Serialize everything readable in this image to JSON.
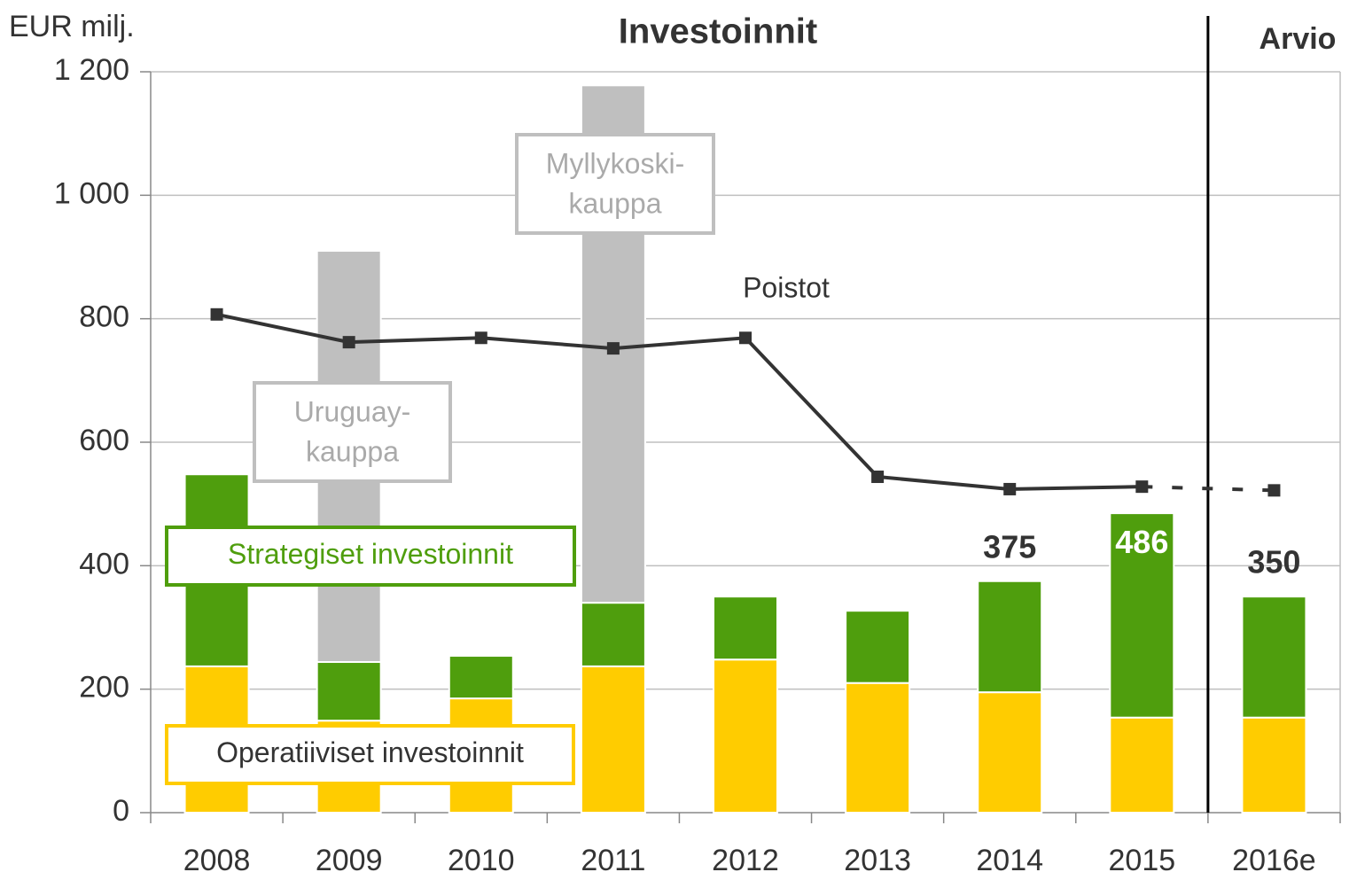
{
  "chart_data": {
    "type": "stacked_bar_line",
    "title": "Investoinnit",
    "y_label": "EUR milj.",
    "forecast_label": "Arvio",
    "categories": [
      "2008",
      "2009",
      "2010",
      "2011",
      "2012",
      "2013",
      "2014",
      "2015",
      "2016e"
    ],
    "ylim": [
      0,
      1200
    ],
    "yticks": [
      0,
      200,
      400,
      600,
      800,
      {
        "value": 1000,
        "label": "1 000"
      },
      {
        "value": 1200,
        "label": "1 200"
      }
    ],
    "grid": true,
    "series": [
      {
        "name": "Operatiiviset investoinnit",
        "color": "#ffcc00",
        "values": [
          237,
          149,
          185,
          237,
          248,
          210,
          195,
          154,
          154
        ]
      },
      {
        "name": "Strategiset investoinnit",
        "color": "#4f9e0d",
        "values": [
          311,
          95,
          69,
          103,
          102,
          117,
          180,
          331,
          196
        ]
      },
      {
        "color": "#bfbfbf",
        "values": [
          null,
          666,
          null,
          838,
          null,
          null,
          null,
          null,
          null
        ]
      }
    ],
    "acquisitions": [
      {
        "index": 1,
        "lines": [
          "Uruguay-",
          "kauppa"
        ]
      },
      {
        "index": 3,
        "lines": [
          "Myllykoski-",
          "kauppa"
        ]
      }
    ],
    "line": {
      "name": "Poistot",
      "color": "#333333",
      "values": [
        807,
        762,
        769,
        752,
        769,
        544,
        524,
        528,
        522
      ],
      "dashed_last_segment": true
    },
    "totals": [
      null,
      null,
      null,
      null,
      null,
      null,
      375,
      486,
      350
    ],
    "totals_inside": [
      false,
      false,
      false,
      false,
      false,
      false,
      false,
      true,
      false
    ]
  }
}
